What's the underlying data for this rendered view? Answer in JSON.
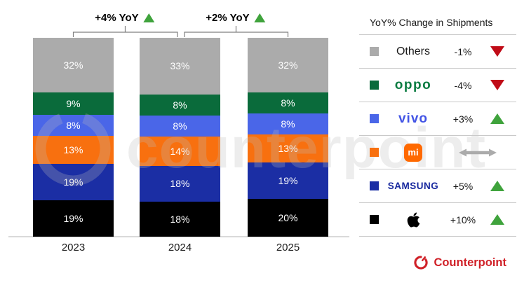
{
  "chart_data": {
    "type": "bar",
    "stacked": true,
    "unit": "%",
    "title": "",
    "categories": [
      "2023",
      "2024",
      "2025"
    ],
    "series_order_note": "series listed top-to-bottom within each stacked bar",
    "series": [
      {
        "name": "Others",
        "color": "#ABABAB",
        "values": [
          32,
          33,
          32
        ]
      },
      {
        "name": "OPPO",
        "color": "#0A6B3B",
        "values": [
          9,
          8,
          8
        ]
      },
      {
        "name": "vivo",
        "color": "#4A66E8",
        "values": [
          8,
          8,
          8
        ]
      },
      {
        "name": "Xiaomi",
        "color": "#F8700F",
        "values": [
          13,
          14,
          13
        ]
      },
      {
        "name": "Samsung",
        "color": "#1B2EA4",
        "values": [
          19,
          18,
          19
        ]
      },
      {
        "name": "Apple",
        "color": "#000000",
        "values": [
          19,
          18,
          20
        ]
      }
    ],
    "annotations": [
      {
        "label": "+4% YoY",
        "direction": "up",
        "between": [
          "2023",
          "2024"
        ]
      },
      {
        "label": "+2% YoY",
        "direction": "up",
        "between": [
          "2024",
          "2025"
        ]
      }
    ],
    "legend_position": "right",
    "grid": false,
    "ylim": [
      0,
      100
    ]
  },
  "legend": {
    "title": "YoY% Change in Shipments",
    "rows": [
      {
        "brand": "Others",
        "swatch": "#ABABAB",
        "change": "-1%",
        "indicator": "down"
      },
      {
        "brand": "OPPO",
        "swatch": "#0A6B3B",
        "change": "-4%",
        "indicator": "down"
      },
      {
        "brand": "vivo",
        "swatch": "#4A66E8",
        "change": "+3%",
        "indicator": "up"
      },
      {
        "brand": "Xiaomi",
        "swatch": "#F8700F",
        "change": "",
        "indicator": "flat"
      },
      {
        "brand": "Samsung",
        "swatch": "#1B2EA4",
        "change": "+5%",
        "indicator": "up"
      },
      {
        "brand": "Apple",
        "swatch": "#000000",
        "change": "+10%",
        "indicator": "up"
      }
    ]
  },
  "watermark": {
    "text": "counterpoint"
  },
  "footer": {
    "logo_text": "Counterpoint"
  },
  "colors": {
    "up": "#3FA33C",
    "down": "#C00B17",
    "flat_arrow": "#ABABAB",
    "brand_red": "#D02128",
    "oppo_green": "#0C7C42",
    "vivo_blue": "#4254E5",
    "samsung_blue": "#17289E",
    "xiaomi_orange": "#FF6900",
    "bracket": "#7F7F7F",
    "baseline": "#D9D9D9"
  }
}
